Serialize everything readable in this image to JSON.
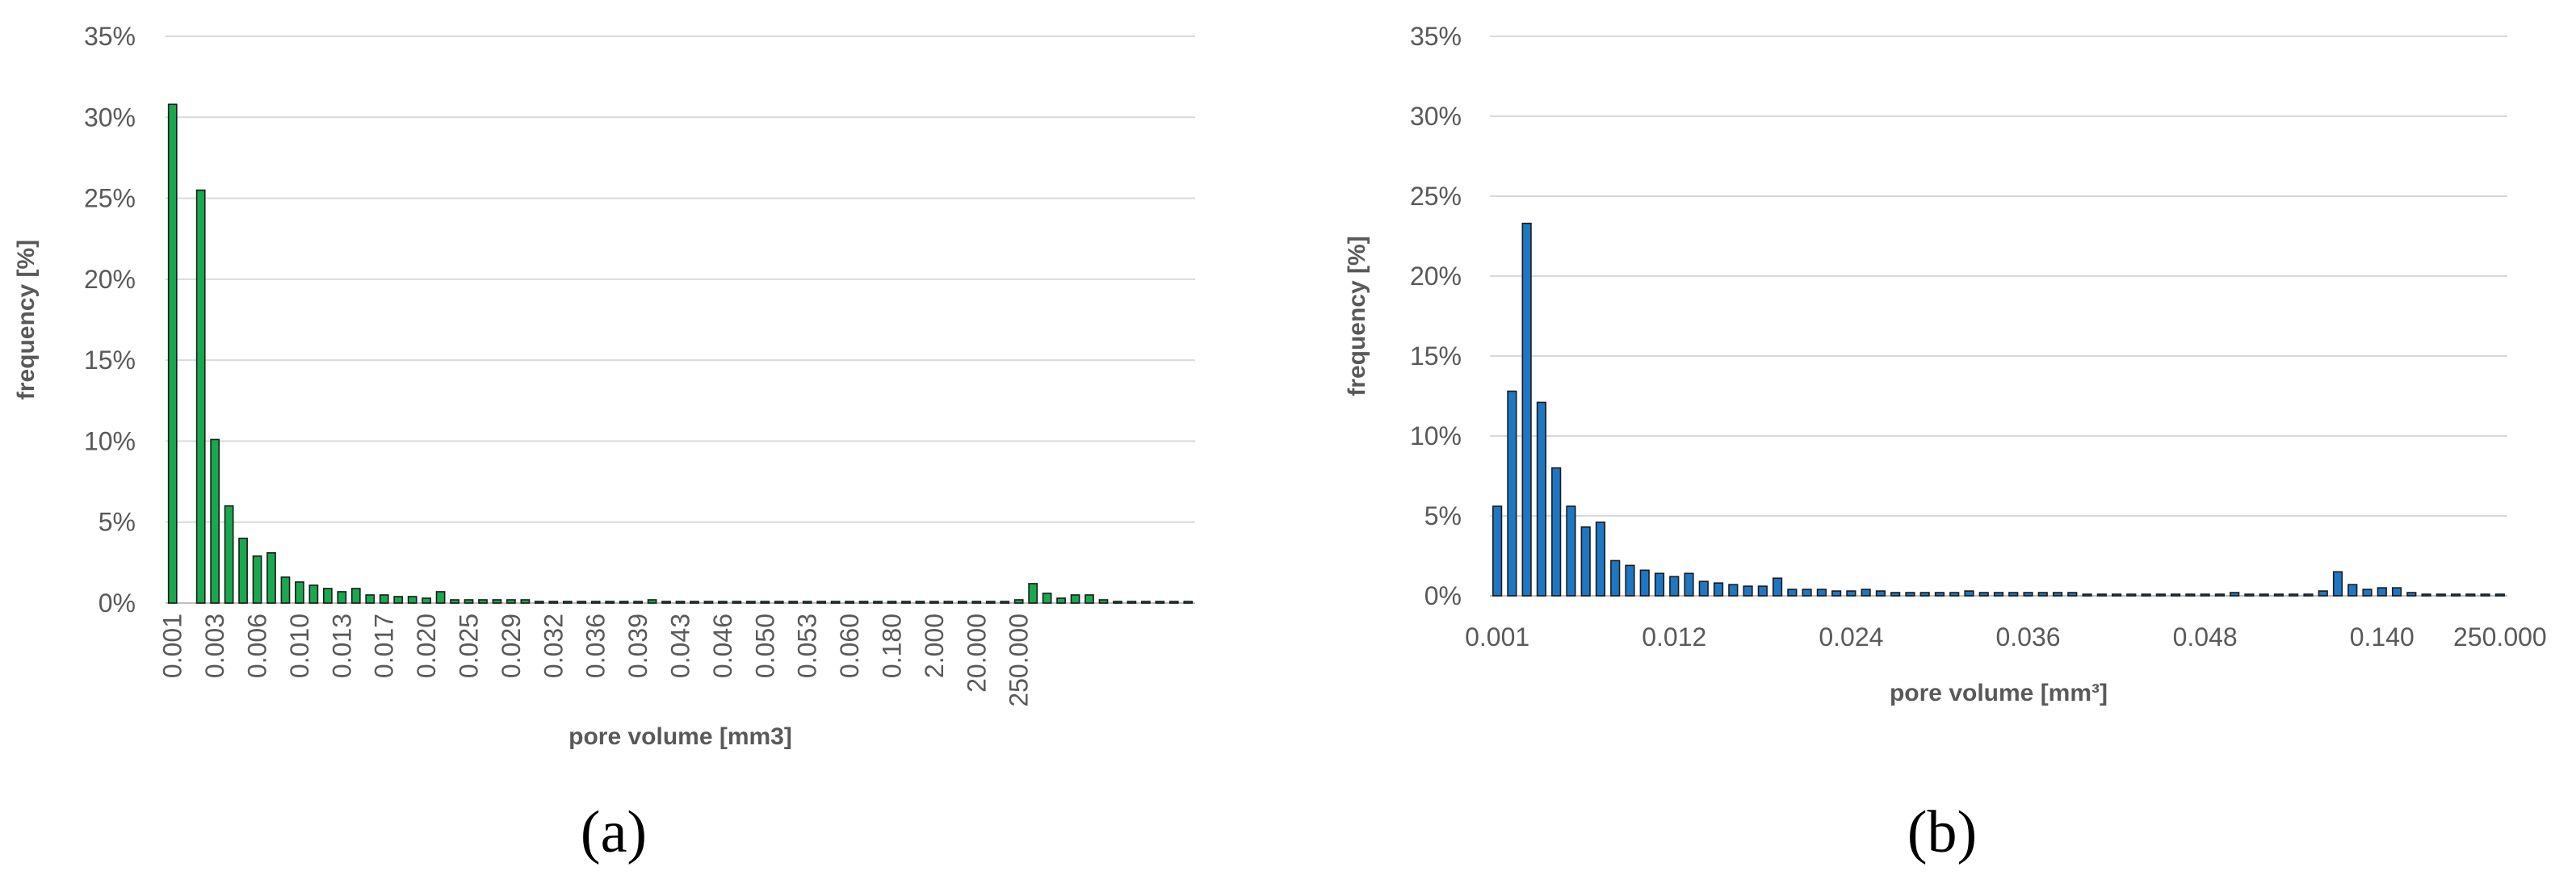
{
  "colors": {
    "series_a": "#18a94f",
    "series_b": "#1f77c4",
    "bar_outline": "#1a1a1a",
    "grid": "#d9d9d9",
    "text": "#595959"
  },
  "panel_labels": [
    "(a)",
    "(b)"
  ],
  "chart_data": [
    {
      "type": "bar",
      "title": "",
      "xlabel": "pore volume [mm3]",
      "ylabel": "frequency [%]",
      "ylim": [
        0,
        35
      ],
      "y_ticks": [
        "0%",
        "5%",
        "10%",
        "15%",
        "20%",
        "25%",
        "30%",
        "35%"
      ],
      "grid": true,
      "x_tick_rotation": "vertical",
      "tick_labels": [
        "0.001",
        "0.003",
        "0.006",
        "0.010",
        "0.013",
        "0.017",
        "0.020",
        "0.025",
        "0.029",
        "0.032",
        "0.036",
        "0.039",
        "0.043",
        "0.046",
        "0.050",
        "0.053",
        "0.060",
        "0.180",
        "2.000",
        "20.000",
        "250.000"
      ],
      "tick_label_every": 3,
      "values": [
        30.8,
        0,
        25.5,
        10.1,
        6.0,
        4.0,
        2.9,
        3.1,
        1.6,
        1.3,
        1.1,
        0.9,
        0.7,
        0.9,
        0.5,
        0.5,
        0.4,
        0.4,
        0.3,
        0.7,
        0.2,
        0.2,
        0.2,
        0.2,
        0.2,
        0.2,
        0.1,
        0.1,
        0.1,
        0.1,
        0.1,
        0.1,
        0.1,
        0.1,
        0.2,
        0.1,
        0.1,
        0.1,
        0.1,
        0.1,
        0.1,
        0.1,
        0.1,
        0.1,
        0.1,
        0.1,
        0.1,
        0.1,
        0.1,
        0.1,
        0.1,
        0.1,
        0.1,
        0.1,
        0.1,
        0.1,
        0.1,
        0.1,
        0.1,
        0.1,
        0.2,
        1.2,
        0.6,
        0.3,
        0.5,
        0.5,
        0.2,
        0.1,
        0.1,
        0.1,
        0.1,
        0.1,
        0.1
      ],
      "color": "#18a94f"
    },
    {
      "type": "bar",
      "title": "",
      "xlabel": "pore volume [mm³]",
      "ylabel": "frequency  [%]",
      "ylim": [
        0,
        35
      ],
      "y_ticks": [
        "0%",
        "5%",
        "10%",
        "15%",
        "20%",
        "25%",
        "30%",
        "35%"
      ],
      "grid": true,
      "x_tick_rotation": "horizontal",
      "tick_labels": [
        "0.001",
        "0.012",
        "0.024",
        "0.036",
        "0.048",
        "0.140",
        "250.000"
      ],
      "tick_label_every": 12,
      "values": [
        5.6,
        12.8,
        23.3,
        12.1,
        8.0,
        5.6,
        4.3,
        4.6,
        2.2,
        1.9,
        1.6,
        1.4,
        1.2,
        1.4,
        0.9,
        0.8,
        0.7,
        0.6,
        0.6,
        1.1,
        0.4,
        0.4,
        0.4,
        0.3,
        0.3,
        0.4,
        0.3,
        0.2,
        0.2,
        0.2,
        0.2,
        0.2,
        0.3,
        0.2,
        0.2,
        0.2,
        0.2,
        0.2,
        0.2,
        0.2,
        0.1,
        0.1,
        0.1,
        0.1,
        0.1,
        0.1,
        0.1,
        0.1,
        0.1,
        0.1,
        0.2,
        0.1,
        0.1,
        0.1,
        0.1,
        0.1,
        0.3,
        1.5,
        0.7,
        0.4,
        0.5,
        0.5,
        0.2,
        0.1,
        0.1,
        0.1,
        0.1,
        0.1,
        0.1
      ],
      "color": "#1f77c4"
    }
  ]
}
